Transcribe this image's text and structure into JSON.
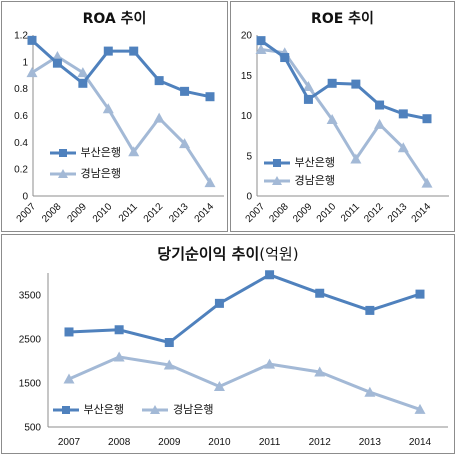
{
  "chart_data": [
    {
      "type": "line",
      "title": "ROA 추이",
      "categories": [
        "2007",
        "2008",
        "2009",
        "2010",
        "2011",
        "2012",
        "2013",
        "2014"
      ],
      "ylim": [
        0,
        1.2
      ],
      "yticks": [
        "0",
        "0.2",
        "0.4",
        "0.6",
        "0.8",
        "1",
        "1.2"
      ],
      "grid": false,
      "legend_position": "bottom-left",
      "series": [
        {
          "name": "부산은행",
          "values": [
            1.16,
            0.99,
            0.84,
            1.08,
            1.08,
            0.86,
            0.78,
            0.74
          ],
          "color": "#4f81bd",
          "marker": "square"
        },
        {
          "name": "경남은행",
          "values": [
            0.92,
            1.04,
            0.92,
            0.65,
            0.33,
            0.58,
            0.39,
            0.1
          ],
          "color": "#a3b9d6",
          "marker": "triangle"
        }
      ]
    },
    {
      "type": "line",
      "title": "ROE 추이",
      "categories": [
        "2007",
        "2008",
        "2009",
        "2010",
        "2011",
        "2012",
        "2013",
        "2014"
      ],
      "ylim": [
        0,
        20
      ],
      "yticks": [
        "0",
        "5",
        "10",
        "15",
        "20"
      ],
      "grid": false,
      "legend_position": "bottom-left",
      "series": [
        {
          "name": "부산은행",
          "values": [
            19.3,
            17.2,
            12.0,
            14.0,
            13.9,
            11.3,
            10.2,
            9.6
          ],
          "color": "#4f81bd",
          "marker": "square"
        },
        {
          "name": "경남은행",
          "values": [
            18.2,
            17.8,
            13.6,
            9.5,
            4.6,
            8.9,
            6.0,
            1.6
          ],
          "color": "#a3b9d6",
          "marker": "triangle"
        }
      ]
    },
    {
      "type": "line",
      "title": "당기순이익 추이",
      "subtitle": "(억원)",
      "categories": [
        "2007",
        "2008",
        "2009",
        "2010",
        "2011",
        "2012",
        "2013",
        "2014"
      ],
      "ylim": [
        500,
        4000
      ],
      "yticks": [
        "500",
        "1500",
        "2500",
        "3500"
      ],
      "grid": false,
      "legend_position": "bottom-left",
      "series": [
        {
          "name": "부산은행",
          "values": [
            2660,
            2710,
            2420,
            3310,
            3960,
            3540,
            3150,
            3520
          ],
          "color": "#4f81bd",
          "marker": "square"
        },
        {
          "name": "경남은행",
          "values": [
            1590,
            2090,
            1910,
            1420,
            1930,
            1750,
            1290,
            900
          ],
          "color": "#a3b9d6",
          "marker": "triangle"
        }
      ]
    }
  ]
}
